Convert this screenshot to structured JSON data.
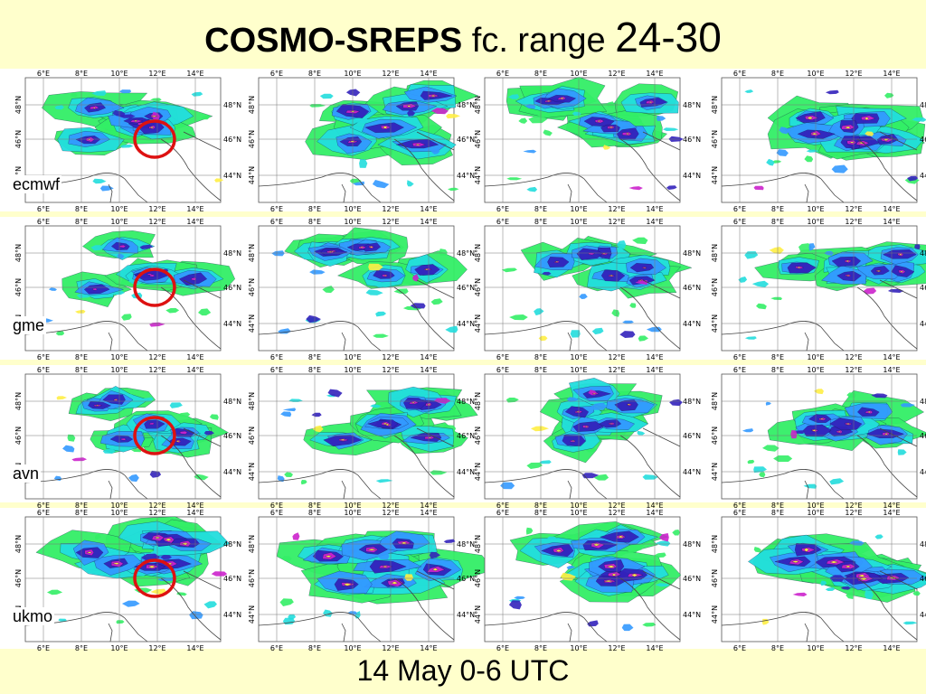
{
  "title": {
    "bold": "COSMO-SREPS",
    "mid": " fc. range ",
    "big": "24-30"
  },
  "footer": "14 May 0-6 UTC",
  "map_axes": {
    "lon_ticks": [
      "6°E",
      "8°E",
      "10°E",
      "12°E",
      "14°E"
    ],
    "lat_ticks": [
      "48°N",
      "46°N",
      "44°N"
    ]
  },
  "colors": {
    "background": "#ffffcc",
    "precip_light": "#33ee66",
    "precip_mid": "#22dddd",
    "precip_blue": "#3399ff",
    "precip_dark": "#3322bb",
    "precip_magenta": "#cc22cc",
    "precip_peak": "#ffee44",
    "highlight_circle": "#dd1111"
  },
  "rows": [
    {
      "model": "ecmwf",
      "circle": true,
      "circle_on_panel": 0,
      "intensity": [
        0.7,
        0.8,
        0.65,
        0.85
      ]
    },
    {
      "model": "gme",
      "circle": true,
      "circle_on_panel": 0,
      "intensity": [
        0.45,
        0.55,
        0.5,
        0.6
      ]
    },
    {
      "model": "avn",
      "circle": true,
      "circle_on_panel": 0,
      "intensity": [
        0.5,
        0.65,
        0.55,
        0.6
      ]
    },
    {
      "model": "ukmo",
      "circle": true,
      "circle_on_panel": 0,
      "intensity": [
        0.9,
        0.95,
        0.95,
        1.0
      ]
    }
  ]
}
